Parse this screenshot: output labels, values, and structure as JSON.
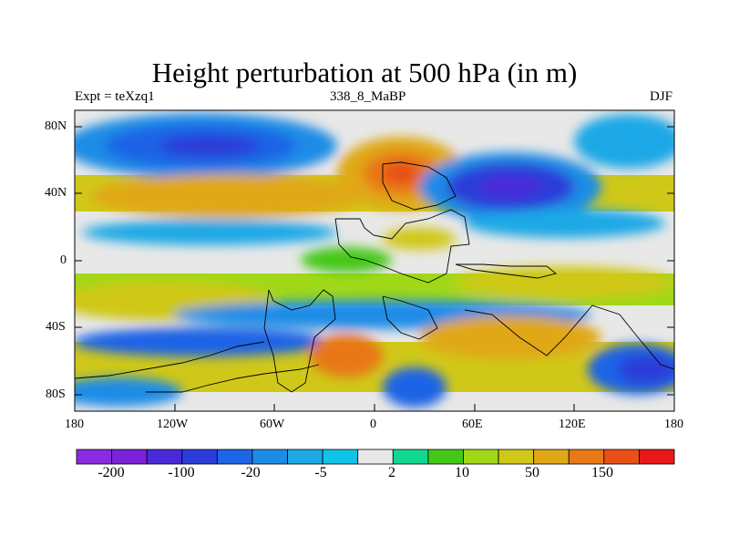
{
  "title": "Height perturbation at 500 hPa (in m)",
  "left_string": "Expt = teXzq1",
  "center_string": "338_8_MaBP",
  "right_string": "DJF",
  "lat_ticks": [
    "80N",
    "40N",
    "0",
    "40S",
    "80S"
  ],
  "lon_ticks": [
    "180",
    "120W",
    "60W",
    "0",
    "60E",
    "120E",
    "180"
  ],
  "colorbar": {
    "colors": [
      "#8a2be2",
      "#7a22d8",
      "#4a2ad8",
      "#2a3cd8",
      "#1e64e6",
      "#1e8ce6",
      "#1ea8e6",
      "#10c4e8",
      "#e8e8e8",
      "#10d890",
      "#44c818",
      "#a0d818",
      "#d0c818",
      "#e0a818",
      "#e87818",
      "#e85018",
      "#e81818"
    ],
    "labels": [
      "-200",
      "-100",
      "-20",
      "-5",
      "2",
      "10",
      "50",
      "150"
    ]
  }
}
